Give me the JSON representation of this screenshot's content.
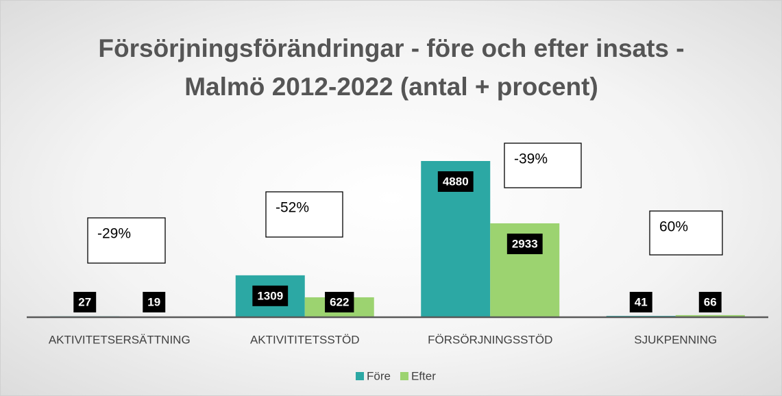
{
  "chart_data": {
    "type": "bar",
    "title": "Försörjningsförändringar - före och efter insats - Malmö 2012-2022 (antal + procent)",
    "categories": [
      "AKTIVITETSERSÄTTNING",
      "AKTIVITITETSSTÖD",
      "FÖRSÖRJNINGSSTÖD",
      "SJUKPENNING"
    ],
    "series": [
      {
        "name": "Före",
        "color": "#2ca8a4",
        "values": [
          27,
          1309,
          4880,
          41
        ]
      },
      {
        "name": "Efter",
        "color": "#9cd370",
        "values": [
          19,
          622,
          2933,
          66
        ]
      }
    ],
    "annotations": [
      "-29%",
      "-52%",
      "-39%",
      "60%"
    ],
    "legend": "bottom"
  }
}
